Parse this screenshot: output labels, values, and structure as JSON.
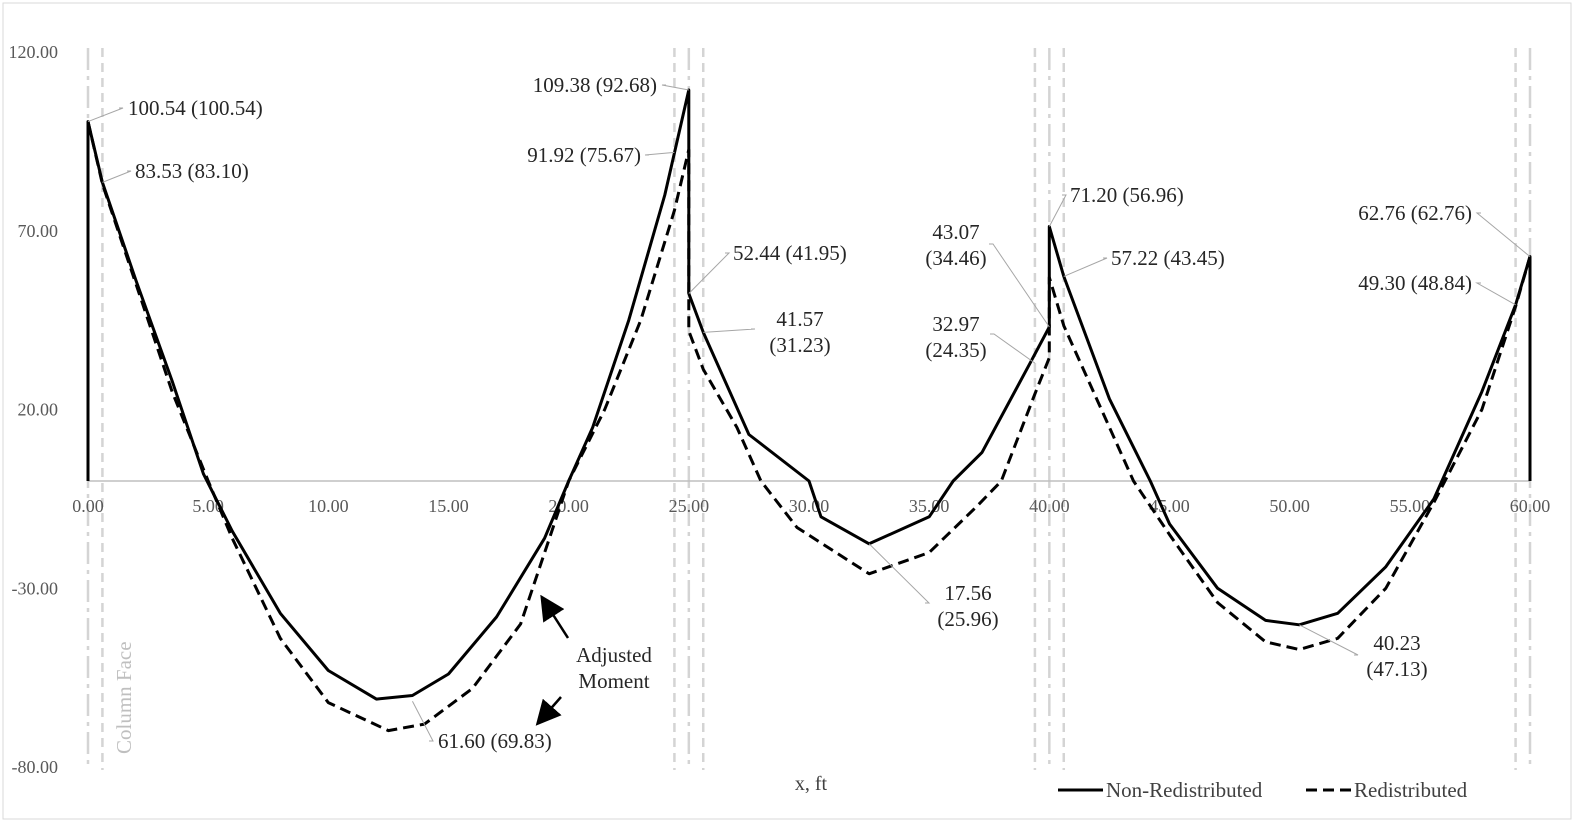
{
  "chart_data": {
    "type": "line",
    "title": "",
    "xlabel": "x, ft",
    "ylabel": "",
    "xlim": [
      0,
      60
    ],
    "ylim": [
      -80,
      120
    ],
    "x_ticks": [
      "0.00",
      "5.00",
      "10.00",
      "15.00",
      "20.00",
      "25.00",
      "30.00",
      "35.00",
      "40.00",
      "45.00",
      "50.00",
      "55.00",
      "60.00"
    ],
    "y_ticks": [
      "120.00",
      "70.00",
      "20.00",
      "-30.00",
      "-80.00"
    ],
    "grid": false,
    "legend": {
      "position": "bottom-right",
      "entries": [
        "Non-Redistributed",
        "Redistributed"
      ]
    },
    "series": [
      {
        "name": "Non-Redistributed",
        "style": "solid",
        "color": "#000000",
        "points": [
          [
            0,
            0
          ],
          [
            0,
            100.54
          ],
          [
            0.6,
            83.53
          ],
          [
            2,
            56
          ],
          [
            3.5,
            28
          ],
          [
            4.8,
            2
          ],
          [
            6,
            -14
          ],
          [
            8,
            -37
          ],
          [
            10,
            -53
          ],
          [
            12,
            -61
          ],
          [
            13.5,
            -60
          ],
          [
            15,
            -54
          ],
          [
            17,
            -38
          ],
          [
            19,
            -16
          ],
          [
            20,
            0
          ],
          [
            21,
            15
          ],
          [
            22.5,
            45
          ],
          [
            24,
            80
          ],
          [
            25,
            109.38
          ],
          [
            25,
            52.44
          ],
          [
            25.6,
            41.57
          ],
          [
            27.5,
            13
          ],
          [
            30,
            0
          ],
          [
            30.5,
            -10
          ],
          [
            32.5,
            -17.56
          ],
          [
            35,
            -10
          ],
          [
            36,
            0
          ],
          [
            37.2,
            8
          ],
          [
            39.2,
            32.97
          ],
          [
            40,
            43.07
          ],
          [
            40,
            71.2
          ],
          [
            40.6,
            57.22
          ],
          [
            42.5,
            23
          ],
          [
            44.2,
            0
          ],
          [
            45,
            -12
          ],
          [
            47,
            -30
          ],
          [
            49,
            -39
          ],
          [
            50.4,
            -40.23
          ],
          [
            52,
            -37
          ],
          [
            54,
            -24
          ],
          [
            56,
            -5
          ],
          [
            58,
            25
          ],
          [
            59.4,
            49.3
          ],
          [
            60,
            62.76
          ],
          [
            60,
            0
          ]
        ]
      },
      {
        "name": "Redistributed",
        "style": "dashed",
        "color": "#000000",
        "points": [
          [
            0,
            100.54
          ],
          [
            0.6,
            83.1
          ],
          [
            2,
            55
          ],
          [
            3.5,
            25
          ],
          [
            5,
            0
          ],
          [
            6,
            -16
          ],
          [
            8,
            -44
          ],
          [
            10,
            -62
          ],
          [
            12.5,
            -69.83
          ],
          [
            14,
            -68
          ],
          [
            16,
            -58
          ],
          [
            18,
            -40
          ],
          [
            20,
            0
          ],
          [
            21.5,
            20
          ],
          [
            23,
            45
          ],
          [
            24.4,
            75.67
          ],
          [
            25,
            92.68
          ],
          [
            25,
            41.95
          ],
          [
            25.6,
            31.23
          ],
          [
            27,
            15
          ],
          [
            28,
            0
          ],
          [
            29.5,
            -13
          ],
          [
            32.5,
            -25.96
          ],
          [
            35,
            -20
          ],
          [
            37,
            -7
          ],
          [
            38,
            0
          ],
          [
            39.4,
            24.35
          ],
          [
            40,
            34.46
          ],
          [
            40,
            56.96
          ],
          [
            40.6,
            43.45
          ],
          [
            43.5,
            0
          ],
          [
            45,
            -15
          ],
          [
            47,
            -34
          ],
          [
            49,
            -45
          ],
          [
            50.4,
            -47.13
          ],
          [
            52,
            -44
          ],
          [
            54,
            -30
          ],
          [
            56,
            -6
          ],
          [
            58,
            20
          ],
          [
            59.4,
            48.84
          ],
          [
            60,
            62.76
          ]
        ]
      }
    ],
    "column_lines": [
      {
        "x": 0,
        "style": "long-dash-dot"
      },
      {
        "x": 0.6,
        "style": "dashed"
      },
      {
        "x": 24.4,
        "style": "dashed"
      },
      {
        "x": 25,
        "style": "long-dash-dot"
      },
      {
        "x": 25.6,
        "style": "dashed"
      },
      {
        "x": 39.4,
        "style": "dashed"
      },
      {
        "x": 40,
        "style": "long-dash-dot"
      },
      {
        "x": 40.6,
        "style": "dashed"
      },
      {
        "x": 59.4,
        "style": "dashed"
      },
      {
        "x": 60,
        "style": "long-dash-dot"
      }
    ],
    "annotations": [
      {
        "lines": [
          "100.54 (100.54)"
        ],
        "x": 0,
        "y": 100.54
      },
      {
        "lines": [
          "83.53 (83.10)"
        ],
        "x": 0.6,
        "y": 83.53
      },
      {
        "lines": [
          "109.38 (92.68)"
        ],
        "x": 25,
        "y": 109.38
      },
      {
        "lines": [
          "91.92 (75.67)"
        ],
        "x": 24.4,
        "y": 91.92
      },
      {
        "lines": [
          "52.44 (41.95)"
        ],
        "x": 25,
        "y": 52.44
      },
      {
        "lines": [
          "41.57",
          "(31.23)"
        ],
        "x": 25.6,
        "y": 41.57
      },
      {
        "lines": [
          "43.07",
          "(34.46)"
        ],
        "x": 40,
        "y": 43.07
      },
      {
        "lines": [
          "32.97",
          "(24.35)"
        ],
        "x": 39.4,
        "y": 32.97
      },
      {
        "lines": [
          "71.20 (56.96)"
        ],
        "x": 40,
        "y": 71.2
      },
      {
        "lines": [
          "57.22 (43.45)"
        ],
        "x": 40.6,
        "y": 57.22
      },
      {
        "lines": [
          "62.76 (62.76)"
        ],
        "x": 60,
        "y": 62.76
      },
      {
        "lines": [
          "49.30 (48.84)"
        ],
        "x": 59.4,
        "y": 49.3
      },
      {
        "lines": [
          "61.60 (69.83)"
        ],
        "x": 13.5,
        "y": -61.6
      },
      {
        "lines": [
          "17.56",
          "(25.96)"
        ],
        "x": 32.5,
        "y": -17.56
      },
      {
        "lines": [
          "40.23",
          "(47.13)"
        ],
        "x": 50.4,
        "y": -40.23
      },
      {
        "lines": [
          "Adjusted",
          "Moment"
        ],
        "x": 21,
        "y": -50
      }
    ],
    "side_label": "Column Face"
  }
}
